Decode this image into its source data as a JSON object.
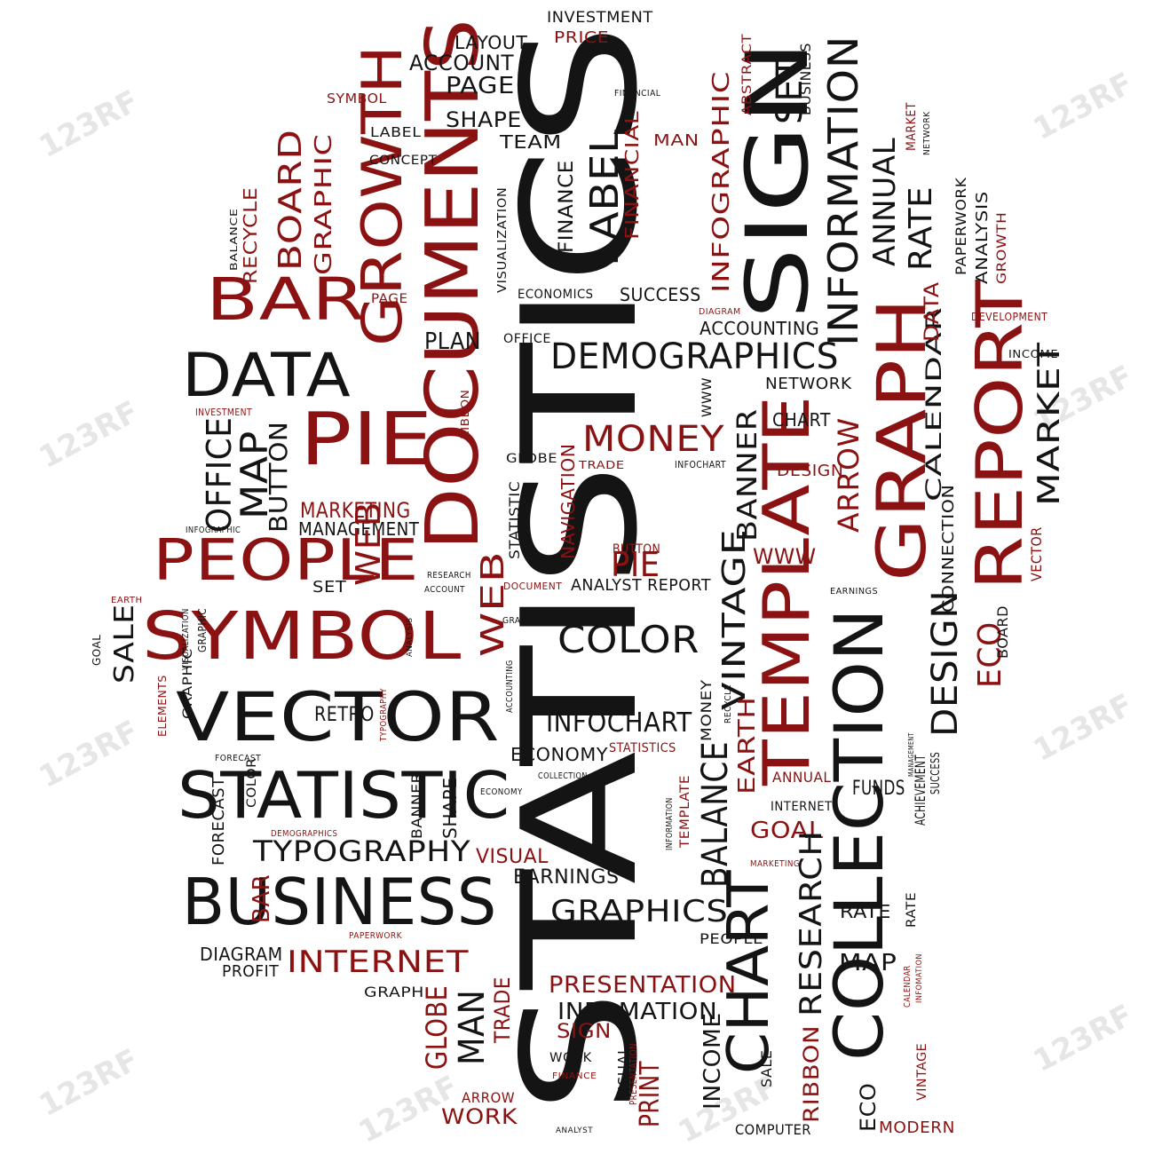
{
  "watermark": "123RF",
  "colors": {
    "black": "#141414",
    "red": "#8b1212"
  },
  "words": [
    {
      "id": "statistics",
      "text": "STATISTICS",
      "color": "black"
    },
    {
      "id": "documents",
      "text": "DOCUMENTS",
      "color": "red"
    },
    {
      "id": "growth",
      "text": "GROWTH",
      "color": "red"
    },
    {
      "id": "sign",
      "text": "SIGN",
      "color": "black"
    },
    {
      "id": "information",
      "text": "INFORMATION",
      "color": "black"
    },
    {
      "id": "graph",
      "text": "GRAPH",
      "color": "red"
    },
    {
      "id": "report",
      "text": "REPORT",
      "color": "red"
    },
    {
      "id": "template",
      "text": "TEMPLATE",
      "color": "red"
    },
    {
      "id": "collection",
      "text": "COLLECTION",
      "color": "black"
    },
    {
      "id": "chart-big",
      "text": "CHART",
      "color": "black"
    },
    {
      "id": "bar",
      "text": "BAR",
      "color": "red"
    },
    {
      "id": "data",
      "text": "DATA",
      "color": "black"
    },
    {
      "id": "pie",
      "text": "PIE",
      "color": "red"
    },
    {
      "id": "people",
      "text": "PEOPLE",
      "color": "red"
    },
    {
      "id": "symbol",
      "text": "SYMBOL",
      "color": "red"
    },
    {
      "id": "vector",
      "text": "VECTOR",
      "color": "black"
    },
    {
      "id": "statistic",
      "text": "STATISTIC",
      "color": "black"
    },
    {
      "id": "business",
      "text": "BUSINESS",
      "color": "black"
    },
    {
      "id": "typography",
      "text": "TYPOGRAPHY",
      "color": "black"
    },
    {
      "id": "internet",
      "text": "INTERNET",
      "color": "red"
    },
    {
      "id": "demographics",
      "text": "DEMOGRAPHICS",
      "color": "black"
    },
    {
      "id": "money",
      "text": "MONEY",
      "color": "red"
    },
    {
      "id": "color",
      "text": "COLOR",
      "color": "black"
    },
    {
      "id": "infochart",
      "text": "INFOCHART",
      "color": "black"
    },
    {
      "id": "graphics",
      "text": "GRAPHICS",
      "color": "black"
    },
    {
      "id": "presentation",
      "text": "PRESENTATION",
      "color": "red"
    },
    {
      "id": "infomation",
      "text": "INFOMATION",
      "color": "black"
    },
    {
      "id": "investment",
      "text": "INVESTMENT",
      "color": "black"
    },
    {
      "id": "price",
      "text": "PRICE",
      "color": "red"
    },
    {
      "id": "layout",
      "text": "LAYOUT",
      "color": "black"
    },
    {
      "id": "account",
      "text": "ACCOUNT",
      "color": "black"
    },
    {
      "id": "page",
      "text": "PAGE",
      "color": "black"
    },
    {
      "id": "shape",
      "text": "SHAPE",
      "color": "black"
    },
    {
      "id": "team",
      "text": "TEAM",
      "color": "black"
    },
    {
      "id": "concept",
      "text": "CONCEPT",
      "color": "black"
    },
    {
      "id": "label-small",
      "text": "LABEL",
      "color": "black"
    },
    {
      "id": "symbol-small",
      "text": "SYMBOL",
      "color": "red"
    },
    {
      "id": "board",
      "text": "BOARD",
      "color": "red"
    },
    {
      "id": "graphic",
      "text": "GRAPHIC",
      "color": "red"
    },
    {
      "id": "recycle",
      "text": "RECYCLE",
      "color": "red"
    },
    {
      "id": "balance-small",
      "text": "BALANCE",
      "color": "black"
    },
    {
      "id": "finance",
      "text": "FINANCE",
      "color": "black"
    },
    {
      "id": "label-big",
      "text": "LABEL",
      "color": "black"
    },
    {
      "id": "financial-red",
      "text": "FINANCIAL",
      "color": "red"
    },
    {
      "id": "financial-small",
      "text": "FINANCIAL",
      "color": "black"
    },
    {
      "id": "man-top",
      "text": "MAN",
      "color": "red"
    },
    {
      "id": "infographic",
      "text": "INFOGRAPHIC",
      "color": "red"
    },
    {
      "id": "abstract",
      "text": "ABSTRACT",
      "color": "red"
    },
    {
      "id": "set-top",
      "text": "SET",
      "color": "black"
    },
    {
      "id": "business-small",
      "text": "BUSINESS",
      "color": "black"
    },
    {
      "id": "annual",
      "text": "ANNUAL",
      "color": "black"
    },
    {
      "id": "rate-top",
      "text": "RATE",
      "color": "black"
    },
    {
      "id": "market-red",
      "text": "MARKET",
      "color": "red"
    },
    {
      "id": "network-small",
      "text": "NETWORK",
      "color": "black"
    },
    {
      "id": "paperwork",
      "text": "PAPERWORK",
      "color": "black"
    },
    {
      "id": "analysis",
      "text": "ANALYSIS",
      "color": "black"
    },
    {
      "id": "growth-small",
      "text": "GROWTH",
      "color": "red"
    },
    {
      "id": "visualization",
      "text": "VISUALIZATION",
      "color": "black"
    },
    {
      "id": "economics",
      "text": "ECONOMICS",
      "color": "black"
    },
    {
      "id": "success",
      "text": "SUCCESS",
      "color": "black"
    },
    {
      "id": "diagram-small",
      "text": "DIAGRAM",
      "color": "red"
    },
    {
      "id": "accounting",
      "text": "ACCOUNTING",
      "color": "black"
    },
    {
      "id": "plan",
      "text": "PLAN",
      "color": "black"
    },
    {
      "id": "office-small",
      "text": "OFFICE",
      "color": "black"
    },
    {
      "id": "page-red",
      "text": "PAGE",
      "color": "red"
    },
    {
      "id": "development",
      "text": "DEVELOPMENT",
      "color": "red"
    },
    {
      "id": "income-small",
      "text": "INCOME",
      "color": "black"
    },
    {
      "id": "calendar",
      "text": "CALENDAR",
      "color": "black"
    },
    {
      "id": "data-red",
      "text": "DATA",
      "color": "red"
    },
    {
      "id": "market",
      "text": "MARKET",
      "color": "black"
    },
    {
      "id": "network",
      "text": "NETWORK",
      "color": "black"
    },
    {
      "id": "www-small",
      "text": "WWW",
      "color": "black"
    },
    {
      "id": "chart-small",
      "text": "CHART",
      "color": "black"
    },
    {
      "id": "banner",
      "text": "BANNER",
      "color": "black"
    },
    {
      "id": "arrow-big",
      "text": "ARROW",
      "color": "red"
    },
    {
      "id": "design-red",
      "text": "DESIGN",
      "color": "red"
    },
    {
      "id": "infochart-small",
      "text": "INFOCHART",
      "color": "black"
    },
    {
      "id": "trade-small",
      "text": "TRADE",
      "color": "red"
    },
    {
      "id": "globe-small",
      "text": "GLOBE",
      "color": "black"
    },
    {
      "id": "navigation",
      "text": "NAVIGATION",
      "color": "red"
    },
    {
      "id": "ribbon-small",
      "text": "RIBBON",
      "color": "red"
    },
    {
      "id": "investment-small",
      "text": "INVESTMENT",
      "color": "red"
    },
    {
      "id": "office",
      "text": "OFFICE",
      "color": "black"
    },
    {
      "id": "map",
      "text": "MAP",
      "color": "black"
    },
    {
      "id": "button",
      "text": "BUTTON",
      "color": "black"
    },
    {
      "id": "marketing",
      "text": "MARKETING",
      "color": "red"
    },
    {
      "id": "management",
      "text": "MANAGEMENT",
      "color": "black"
    },
    {
      "id": "infographic-small",
      "text": "INFOGRAPHIC",
      "color": "black"
    },
    {
      "id": "web-big",
      "text": "WEB",
      "color": "red"
    },
    {
      "id": "set-mid",
      "text": "SET",
      "color": "black"
    },
    {
      "id": "research-small",
      "text": "RESEARCH",
      "color": "black"
    },
    {
      "id": "account-small",
      "text": "ACCOUNT",
      "color": "black"
    },
    {
      "id": "web-mid",
      "text": "WEB",
      "color": "red"
    },
    {
      "id": "statistic-small",
      "text": "STATISTIC",
      "color": "black"
    },
    {
      "id": "button-red",
      "text": "BUTTON",
      "color": "red"
    },
    {
      "id": "pie-mid",
      "text": "PIE",
      "color": "red"
    },
    {
      "id": "document-small",
      "text": "DOCUMENT",
      "color": "red"
    },
    {
      "id": "analyst-report",
      "text": "ANALYST REPORT",
      "color": "black"
    },
    {
      "id": "www-red",
      "text": "WWW",
      "color": "red"
    },
    {
      "id": "vintage-big",
      "text": "VINTAGE",
      "color": "black"
    },
    {
      "id": "connection",
      "text": "CONNECTION",
      "color": "black"
    },
    {
      "id": "earnings-small",
      "text": "EARNINGS",
      "color": "black"
    },
    {
      "id": "vector-red",
      "text": "VECTOR",
      "color": "red"
    },
    {
      "id": "design-big",
      "text": "DESIGN",
      "color": "black"
    },
    {
      "id": "eco-red",
      "text": "ECO",
      "color": "red"
    },
    {
      "id": "board-small",
      "text": "BOARD",
      "color": "black"
    },
    {
      "id": "earth-small",
      "text": "EARTH",
      "color": "red"
    },
    {
      "id": "goal-small",
      "text": "GOAL",
      "color": "black"
    },
    {
      "id": "sale",
      "text": "SALE",
      "color": "black"
    },
    {
      "id": "visualization-small",
      "text": "VISUALIZATION",
      "color": "black"
    },
    {
      "id": "graphic-small",
      "text": "GRAPHIC",
      "color": "black"
    },
    {
      "id": "analysis-small",
      "text": "ANALYSIS",
      "color": "black"
    },
    {
      "id": "graphics-small",
      "text": "GRAPHICS",
      "color": "black"
    },
    {
      "id": "accounting-small",
      "text": "ACCOUNTING",
      "color": "black"
    },
    {
      "id": "elements-red",
      "text": "ELEMENTS",
      "color": "red"
    },
    {
      "id": "graphic-vert",
      "text": "GRAPHIC",
      "color": "black"
    },
    {
      "id": "retro",
      "text": "RETRO",
      "color": "black"
    },
    {
      "id": "typography-red",
      "text": "TYPOGRAPHY",
      "color": "red"
    },
    {
      "id": "forecast-small",
      "text": "FORECAST",
      "color": "black"
    },
    {
      "id": "economy",
      "text": "ECONOMY",
      "color": "black"
    },
    {
      "id": "statistics-red",
      "text": "STATISTICS",
      "color": "red"
    },
    {
      "id": "money-small",
      "text": "MONEY",
      "color": "black"
    },
    {
      "id": "balance-big",
      "text": "BALANCE",
      "color": "black"
    },
    {
      "id": "earth-big",
      "text": "EARTH",
      "color": "red"
    },
    {
      "id": "recycle-small",
      "text": "RECYCLE",
      "color": "black"
    },
    {
      "id": "management-small",
      "text": "MANAGEMENT",
      "color": "black"
    },
    {
      "id": "achievement",
      "text": "ACHIEVEMENT",
      "color": "black"
    },
    {
      "id": "success-small",
      "text": "SUCCESS",
      "color": "black"
    },
    {
      "id": "annual-red",
      "text": "ANNUAL",
      "color": "red"
    },
    {
      "id": "funds",
      "text": "FUNDS",
      "color": "black"
    },
    {
      "id": "internet-small",
      "text": "INTERNET",
      "color": "black"
    },
    {
      "id": "goal-red",
      "text": "GOAL",
      "color": "red"
    },
    {
      "id": "marketing-small",
      "text": "MARKETING",
      "color": "red"
    },
    {
      "id": "collection-small",
      "text": "COLLECTION",
      "color": "black"
    },
    {
      "id": "economy-small",
      "text": "ECONOMY",
      "color": "black"
    },
    {
      "id": "banner-small",
      "text": "BANNER",
      "color": "black"
    },
    {
      "id": "shape-small",
      "text": "SHAPE",
      "color": "black"
    },
    {
      "id": "forecast",
      "text": "FORECAST",
      "color": "black"
    },
    {
      "id": "color-small",
      "text": "COLOR",
      "color": "black"
    },
    {
      "id": "demographics-small",
      "text": "DEMOGRAPHICS",
      "color": "red"
    },
    {
      "id": "visual",
      "text": "VISUAL",
      "color": "red"
    },
    {
      "id": "earnings",
      "text": "EARNINGS",
      "color": "black"
    },
    {
      "id": "template-small",
      "text": "TEMPLATE",
      "color": "red"
    },
    {
      "id": "information-small",
      "text": "INFORMATION",
      "color": "black"
    },
    {
      "id": "bar-small",
      "text": "BAR",
      "color": "red"
    },
    {
      "id": "research",
      "text": "RESEARCH",
      "color": "black"
    },
    {
      "id": "rate",
      "text": "RATE",
      "color": "black"
    },
    {
      "id": "map-small",
      "text": "MAP",
      "color": "black"
    },
    {
      "id": "people-small",
      "text": "PEOPLE",
      "color": "black"
    },
    {
      "id": "diagram",
      "text": "DIAGRAM",
      "color": "black"
    },
    {
      "id": "profit",
      "text": "PROFIT",
      "color": "black"
    },
    {
      "id": "paperwork-small",
      "text": "PAPERWORK",
      "color": "red"
    },
    {
      "id": "graph-small",
      "text": "GRAPH",
      "color": "black"
    },
    {
      "id": "globe",
      "text": "GLOBE",
      "color": "red"
    },
    {
      "id": "man",
      "text": "MAN",
      "color": "black"
    },
    {
      "id": "trade",
      "text": "TRADE",
      "color": "red"
    },
    {
      "id": "sign-small",
      "text": "SIGN",
      "color": "red"
    },
    {
      "id": "work-small",
      "text": "WORK",
      "color": "black"
    },
    {
      "id": "finance-small",
      "text": "FINANCE",
      "color": "red"
    },
    {
      "id": "arrow-small",
      "text": "ARROW",
      "color": "red"
    },
    {
      "id": "work",
      "text": "WORK",
      "color": "red"
    },
    {
      "id": "analyst",
      "text": "ANALYST",
      "color": "black"
    },
    {
      "id": "visual-small",
      "text": "VISUAL",
      "color": "black"
    },
    {
      "id": "presentation-small",
      "text": "PRESENTATION",
      "color": "red"
    },
    {
      "id": "print",
      "text": "PRINT",
      "color": "red"
    },
    {
      "id": "income",
      "text": "INCOME",
      "color": "black"
    },
    {
      "id": "sale-small",
      "text": "SALE",
      "color": "black"
    },
    {
      "id": "ribbon",
      "text": "RIBBON",
      "color": "red"
    },
    {
      "id": "computer",
      "text": "COMPUTER",
      "color": "black"
    },
    {
      "id": "eco-black",
      "text": "ECO",
      "color": "black"
    },
    {
      "id": "vintage-red",
      "text": "VINTAGE",
      "color": "red"
    },
    {
      "id": "modern",
      "text": "MODERN",
      "color": "red"
    },
    {
      "id": "calendar-small",
      "text": "CALENDAR",
      "color": "red"
    },
    {
      "id": "infomation-small",
      "text": "INFOMATION",
      "color": "red"
    },
    {
      "id": "rate-small",
      "text": "RATE",
      "color": "black"
    }
  ]
}
